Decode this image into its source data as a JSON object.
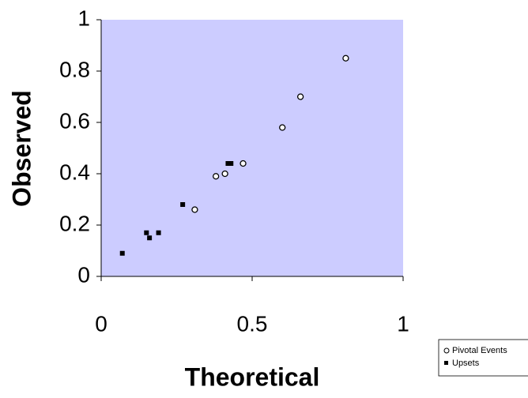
{
  "chart_data": {
    "type": "scatter",
    "xlabel": "Theoretical",
    "ylabel": "Observed",
    "xlim": [
      0,
      1
    ],
    "ylim": [
      0,
      1
    ],
    "xticks": [
      0,
      0.5,
      1
    ],
    "yticks": [
      0,
      0.2,
      0.4,
      0.6,
      0.8,
      1
    ],
    "background": "#ccccff",
    "legend": "lower right",
    "series": [
      {
        "name": "Pivotal Events",
        "marker": "circle",
        "color": "#000000",
        "x": [
          0.31,
          0.38,
          0.41,
          0.47,
          0.6,
          0.66,
          0.81
        ],
        "values": [
          0.26,
          0.39,
          0.4,
          0.44,
          0.58,
          0.7,
          0.85
        ]
      },
      {
        "name": "Upsets",
        "marker": "square",
        "color": "#000000",
        "x": [
          0.07,
          0.15,
          0.16,
          0.19,
          0.27,
          0.42,
          0.43
        ],
        "values": [
          0.09,
          0.17,
          0.15,
          0.17,
          0.28,
          0.44,
          0.44
        ]
      }
    ]
  }
}
